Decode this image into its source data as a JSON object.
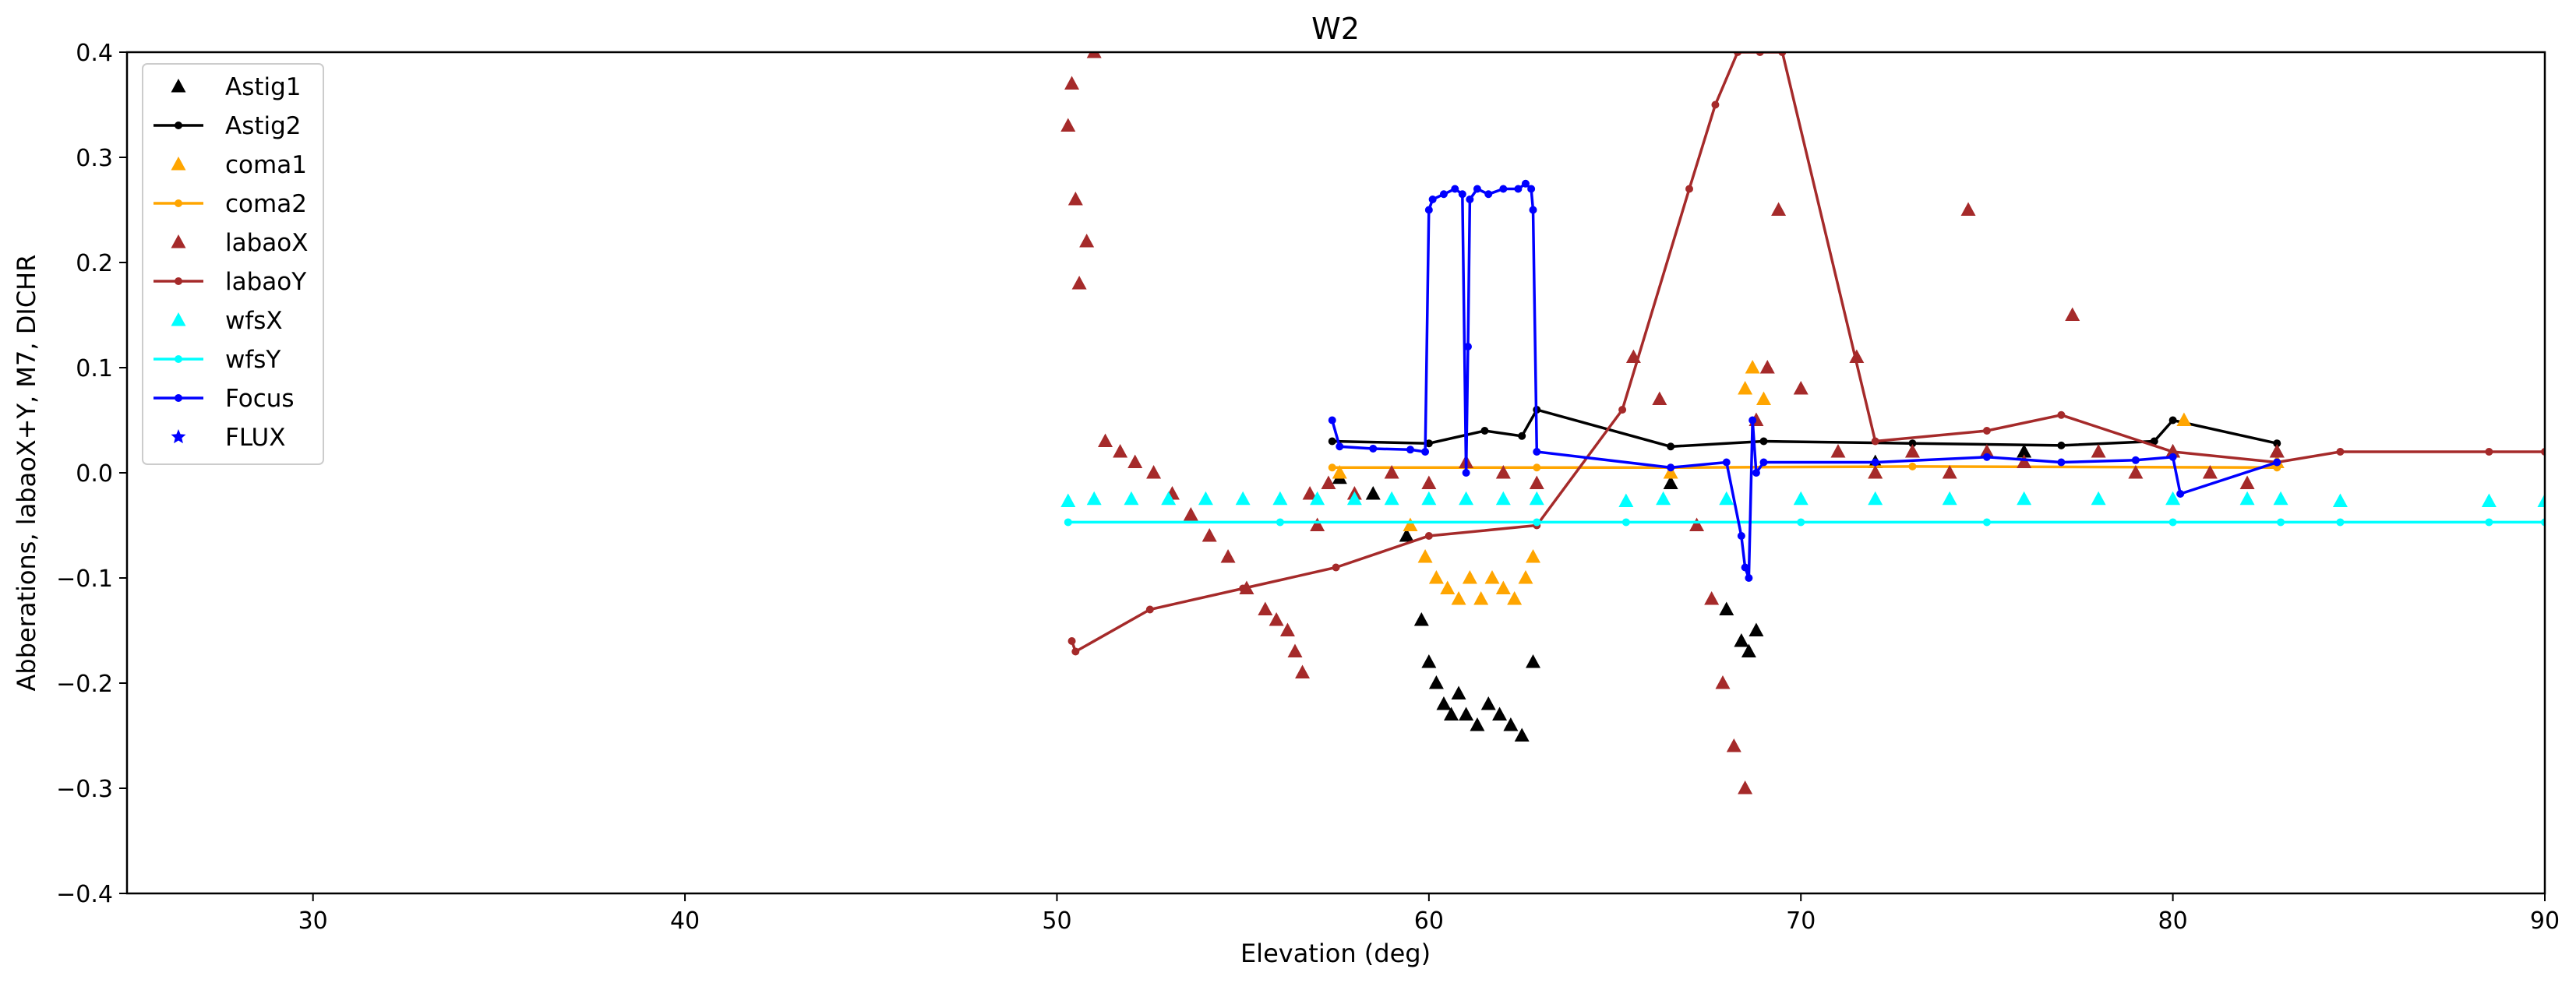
{
  "chart_data": {
    "type": "line",
    "title": "W2",
    "xlabel": "Elevation (deg)",
    "ylabel": "Abberations, labaoX+Y, M7, DICHR",
    "xlim": [
      25,
      90
    ],
    "ylim": [
      -0.4,
      0.4
    ],
    "xticks": [
      30,
      40,
      50,
      60,
      70,
      80,
      90
    ],
    "yticks": [
      -0.4,
      -0.3,
      -0.2,
      -0.1,
      0.0,
      0.1,
      0.2,
      0.3,
      0.4
    ],
    "xtick_labels": [
      "30",
      "40",
      "50",
      "60",
      "70",
      "80",
      "90"
    ],
    "ytick_labels": [
      "−0.4",
      "−0.3",
      "−0.2",
      "−0.1",
      "0.0",
      "0.1",
      "0.2",
      "0.3",
      "0.4"
    ],
    "legend_position": "top-left",
    "series": [
      {
        "name": "Astig1",
        "color": "#000000",
        "style": "triangles",
        "x": [
          57.6,
          58.5,
          59.4,
          59.8,
          60.0,
          60.2,
          60.4,
          60.6,
          60.8,
          61.0,
          61.3,
          61.6,
          61.9,
          62.2,
          62.5,
          62.8,
          66.5,
          68.0,
          68.4,
          68.6,
          68.8,
          72.0,
          76.0,
          80.0,
          82.8
        ],
        "y": [
          -0.005,
          -0.02,
          -0.06,
          -0.14,
          -0.18,
          -0.2,
          -0.22,
          -0.23,
          -0.21,
          -0.23,
          -0.24,
          -0.22,
          -0.23,
          -0.24,
          -0.25,
          -0.18,
          -0.01,
          -0.13,
          -0.16,
          -0.17,
          -0.15,
          0.01,
          0.02,
          0.02,
          0.02
        ]
      },
      {
        "name": "Astig2",
        "color": "#000000",
        "style": "line-dots",
        "x": [
          57.4,
          60.0,
          61.5,
          62.5,
          62.9,
          66.5,
          69.0,
          73.0,
          77.0,
          79.5,
          80.0,
          82.8
        ],
        "y": [
          0.03,
          0.028,
          0.04,
          0.035,
          0.06,
          0.025,
          0.03,
          0.028,
          0.026,
          0.03,
          0.05,
          0.028
        ]
      },
      {
        "name": "coma1",
        "color": "#ffa500",
        "style": "triangles",
        "x": [
          57.6,
          59.5,
          59.9,
          60.2,
          60.5,
          60.8,
          61.1,
          61.4,
          61.7,
          62.0,
          62.3,
          62.6,
          62.8,
          66.5,
          68.5,
          68.7,
          69.0,
          72.0,
          76.0,
          80.3,
          82.8
        ],
        "y": [
          0.0,
          -0.05,
          -0.08,
          -0.1,
          -0.11,
          -0.12,
          -0.1,
          -0.12,
          -0.1,
          -0.11,
          -0.12,
          -0.1,
          -0.08,
          0.0,
          0.08,
          0.1,
          0.07,
          0.0,
          0.01,
          0.05,
          0.01
        ]
      },
      {
        "name": "coma2",
        "color": "#ffa500",
        "style": "line-dots",
        "x": [
          57.4,
          62.9,
          66.5,
          73.0,
          82.8
        ],
        "y": [
          0.005,
          0.005,
          0.005,
          0.006,
          0.005
        ]
      },
      {
        "name": "labaoX",
        "color": "#a52a2a",
        "style": "triangles",
        "x": [
          50.3,
          50.4,
          50.5,
          50.6,
          50.8,
          51.0,
          51.3,
          51.7,
          52.1,
          52.6,
          53.1,
          53.6,
          54.1,
          54.6,
          55.1,
          55.6,
          55.9,
          56.2,
          56.4,
          56.6,
          56.8,
          57.0,
          57.3,
          58.0,
          59.0,
          60.0,
          61.0,
          62.0,
          62.9,
          65.5,
          66.2,
          67.2,
          67.6,
          67.9,
          68.2,
          68.5,
          68.8,
          69.1,
          69.4,
          70.0,
          71.0,
          71.5,
          72.0,
          73.0,
          74.0,
          74.5,
          75.0,
          76.0,
          77.3,
          78.0,
          79.0,
          80.0,
          81.0,
          82.0,
          82.8
        ],
        "y": [
          0.33,
          0.37,
          0.26,
          0.18,
          0.22,
          0.4,
          0.03,
          0.02,
          0.01,
          0.0,
          -0.02,
          -0.04,
          -0.06,
          -0.08,
          -0.11,
          -0.13,
          -0.14,
          -0.15,
          -0.17,
          -0.19,
          -0.02,
          -0.05,
          -0.01,
          -0.02,
          0.0,
          -0.01,
          0.01,
          0.0,
          -0.01,
          0.11,
          0.07,
          -0.05,
          -0.12,
          -0.2,
          -0.26,
          -0.3,
          0.05,
          0.1,
          0.25,
          0.08,
          0.02,
          0.11,
          0.0,
          0.02,
          0.0,
          0.25,
          0.02,
          0.01,
          0.15,
          0.02,
          0.0,
          0.02,
          0.0,
          -0.01,
          0.02
        ]
      },
      {
        "name": "labaoY",
        "color": "#a52a2a",
        "style": "line-dots",
        "x": [
          50.4,
          50.5,
          52.5,
          55.0,
          57.5,
          60.0,
          62.9,
          65.2,
          67.0,
          67.7,
          68.3,
          68.9,
          69.5,
          72.0,
          75.0,
          77.0,
          80.0,
          82.8,
          84.5,
          88.5,
          90.0
        ],
        "y": [
          -0.16,
          -0.17,
          -0.13,
          -0.11,
          -0.09,
          -0.06,
          -0.05,
          0.06,
          0.27,
          0.35,
          0.4,
          0.4,
          0.4,
          0.03,
          0.04,
          0.055,
          0.02,
          0.01,
          0.02,
          0.02,
          0.02
        ]
      },
      {
        "name": "wfsX",
        "color": "#00ffff",
        "style": "triangles",
        "x": [
          50.3,
          51.0,
          52.0,
          53.0,
          54.0,
          55.0,
          56.0,
          57.0,
          58.0,
          59.0,
          60.0,
          61.0,
          62.0,
          62.9,
          65.3,
          66.3,
          68.0,
          70.0,
          72.0,
          74.0,
          76.0,
          78.0,
          80.0,
          82.0,
          82.9,
          84.5,
          88.5,
          90.0
        ],
        "y": [
          -0.027,
          -0.025,
          -0.025,
          -0.025,
          -0.025,
          -0.025,
          -0.025,
          -0.025,
          -0.025,
          -0.025,
          -0.025,
          -0.025,
          -0.025,
          -0.025,
          -0.027,
          -0.025,
          -0.025,
          -0.025,
          -0.025,
          -0.025,
          -0.025,
          -0.025,
          -0.025,
          -0.025,
          -0.025,
          -0.027,
          -0.027,
          -0.027
        ]
      },
      {
        "name": "wfsY",
        "color": "#00ffff",
        "style": "line-dots",
        "x": [
          50.3,
          56.0,
          62.9,
          65.3,
          70.0,
          75.0,
          80.0,
          82.9,
          84.5,
          88.5,
          90.0
        ],
        "y": [
          -0.047,
          -0.047,
          -0.047,
          -0.047,
          -0.047,
          -0.047,
          -0.047,
          -0.047,
          -0.047,
          -0.047,
          -0.047
        ]
      },
      {
        "name": "Focus",
        "color": "#0000ff",
        "style": "line-dots",
        "x": [
          57.4,
          57.6,
          58.5,
          59.5,
          59.9,
          60.0,
          60.1,
          60.4,
          60.7,
          60.9,
          61.0,
          61.05,
          61.1,
          61.3,
          61.6,
          62.0,
          62.4,
          62.6,
          62.75,
          62.8,
          62.9,
          66.5,
          68.0,
          68.4,
          68.5,
          68.6,
          68.7,
          68.8,
          69.0,
          72.0,
          75.0,
          77.0,
          79.0,
          80.0,
          80.2,
          82.8
        ],
        "y": [
          0.05,
          0.025,
          0.023,
          0.022,
          0.02,
          0.25,
          0.26,
          0.265,
          0.27,
          0.265,
          0.0,
          0.12,
          0.26,
          0.27,
          0.265,
          0.27,
          0.27,
          0.275,
          0.27,
          0.25,
          0.02,
          0.005,
          0.01,
          -0.06,
          -0.09,
          -0.1,
          0.05,
          0.0,
          0.01,
          0.01,
          0.015,
          0.01,
          0.012,
          0.015,
          -0.02,
          0.01
        ]
      },
      {
        "name": "FLUX",
        "color": "#0000ff",
        "style": "stars",
        "x": [],
        "y": []
      }
    ]
  }
}
